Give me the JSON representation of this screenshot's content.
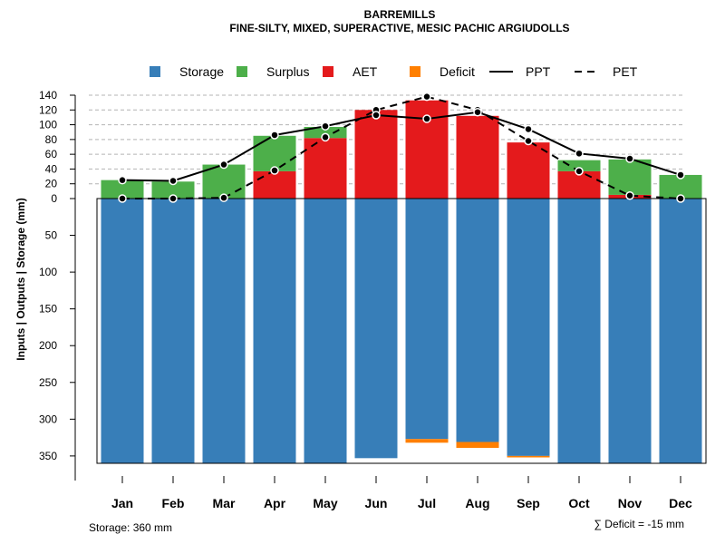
{
  "chart_data": {
    "type": "bar",
    "title": "BARREMILLS",
    "subtitle": "FINE-SILTY, MIXED, SUPERACTIVE, MESIC PACHIC ARGIUDOLLS",
    "ylabel": "Inputs | Outputs | Storage    (mm)",
    "categories": [
      "Jan",
      "Feb",
      "Mar",
      "Apr",
      "May",
      "Jun",
      "Jul",
      "Aug",
      "Sep",
      "Oct",
      "Nov",
      "Dec"
    ],
    "upper_ticks": [
      "0",
      "20",
      "40",
      "60",
      "80",
      "100",
      "120",
      "140"
    ],
    "lower_ticks": [
      "50",
      "100",
      "150",
      "200",
      "250",
      "300",
      "350"
    ],
    "upper_ylim": [
      0,
      140
    ],
    "lower_ylim": [
      0,
      360
    ],
    "legend": [
      {
        "label": "Storage",
        "kind": "box",
        "color": "#377EB8"
      },
      {
        "label": "Surplus",
        "kind": "box",
        "color": "#4DAF4A"
      },
      {
        "label": "AET",
        "kind": "box",
        "color": "#E41A1C"
      },
      {
        "label": "Deficit",
        "kind": "box",
        "color": "#FF7F00"
      },
      {
        "label": "PPT",
        "kind": "line",
        "color": "#000000"
      },
      {
        "label": "PET",
        "kind": "dash",
        "color": "#000000"
      }
    ],
    "series": [
      {
        "name": "Storage",
        "color": "#377EB8",
        "values": [
          360,
          360,
          360,
          360,
          360,
          353,
          327,
          331,
          350,
          360,
          360,
          360
        ]
      },
      {
        "name": "Deficit",
        "color": "#FF7F00",
        "values": [
          0,
          0,
          0,
          0,
          0,
          0,
          5,
          8,
          2,
          0,
          0,
          0
        ]
      },
      {
        "name": "AET",
        "color": "#E41A1C",
        "values": [
          0,
          0,
          0,
          37,
          82,
          120,
          133,
          112,
          76,
          37,
          5,
          0
        ]
      },
      {
        "name": "Surplus",
        "color": "#4DAF4A",
        "values": [
          25,
          23,
          46,
          48,
          15,
          0,
          0,
          0,
          0,
          15,
          48,
          32
        ]
      },
      {
        "name": "PPT",
        "color": "#000000",
        "values": [
          25,
          24,
          46,
          86,
          98,
          113,
          108,
          117,
          94,
          61,
          54,
          32
        ]
      },
      {
        "name": "PET",
        "color": "#000000",
        "values": [
          0,
          0,
          1,
          38,
          83,
          120,
          138,
          120,
          78,
          37,
          4,
          0
        ]
      }
    ],
    "footer_left": "Storage: 360 mm",
    "footer_right": "∑ Deficit = -15 mm"
  }
}
